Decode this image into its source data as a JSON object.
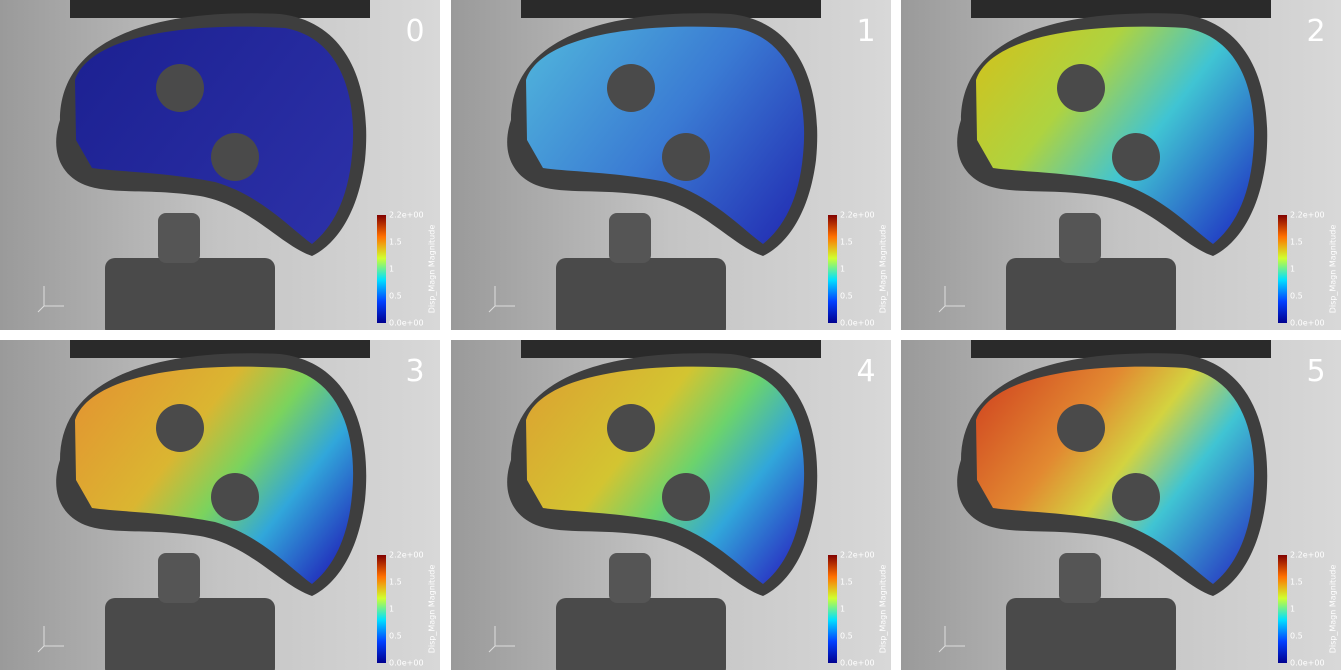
{
  "panels": [
    {
      "label": "0"
    },
    {
      "label": "1"
    },
    {
      "label": "2"
    },
    {
      "label": "3"
    },
    {
      "label": "4"
    },
    {
      "label": "5"
    }
  ],
  "colorbar": {
    "title": "Disp_Magn Magnitude",
    "ticks": [
      "2.2e+00",
      "1.5",
      "1",
      "0.5",
      "0.0e+00"
    ]
  }
}
